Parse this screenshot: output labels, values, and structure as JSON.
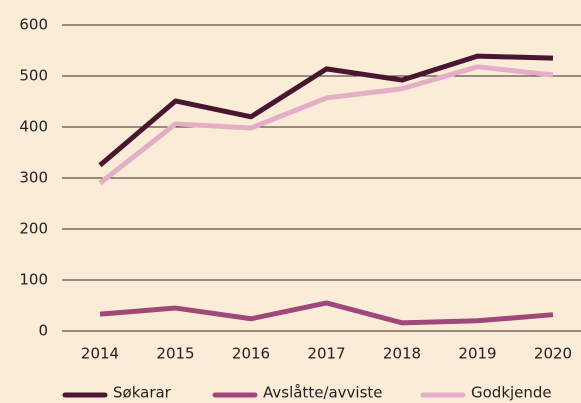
{
  "chart_data": {
    "type": "line",
    "categories": [
      "2014",
      "2015",
      "2016",
      "2017",
      "2018",
      "2019",
      "2020"
    ],
    "series": [
      {
        "name": "Søkarar",
        "color": "#4a1530",
        "values": [
          325,
          451,
          420,
          514,
          492,
          539,
          535
        ]
      },
      {
        "name": "Avslåtte/avviste",
        "color": "#a0487a",
        "values": [
          33,
          45,
          24,
          55,
          16,
          20,
          32
        ]
      },
      {
        "name": "Godkjende",
        "color": "#e4aec6",
        "values": [
          290,
          406,
          398,
          457,
          475,
          518,
          502
        ]
      }
    ],
    "ylim": [
      0,
      600
    ],
    "yticks": [
      0,
      100,
      200,
      300,
      400,
      500,
      600
    ],
    "grid": true,
    "legend": "bottom"
  }
}
